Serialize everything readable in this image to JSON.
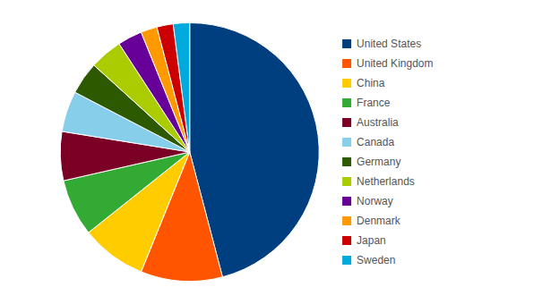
{
  "chart_data": {
    "type": "pie",
    "categories": [
      "United States",
      "United Kingdom",
      "China",
      "France",
      "Australia",
      "Canada",
      "Germany",
      "Netherlands",
      "Norway",
      "Denmark",
      "Japan",
      "Sweden"
    ],
    "values": [
      45,
      10,
      8,
      7,
      6,
      5,
      4,
      4,
      3,
      2,
      2,
      2
    ],
    "colors": [
      "#003f7f",
      "#ff5500",
      "#ffcc00",
      "#33aa33",
      "#7b0026",
      "#87ceeb",
      "#2d5a00",
      "#aacc00",
      "#660099",
      "#ff9900",
      "#cc0000",
      "#00aadd"
    ],
    "legend": "right"
  }
}
